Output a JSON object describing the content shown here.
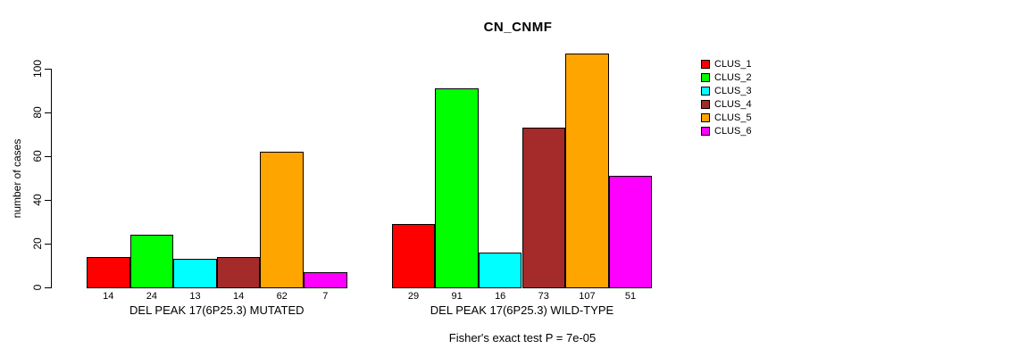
{
  "chart_data": {
    "type": "bar",
    "grouped": true,
    "title": "CN_CNMF",
    "ylabel": "number of cases",
    "xlabel": "",
    "annotation": "Fisher's exact test P = 7e-05",
    "ylim": [
      0,
      100
    ],
    "yticks": [
      0,
      20,
      40,
      60,
      80,
      100
    ],
    "grid": false,
    "legend_position": "right",
    "show_bar_value_labels": true,
    "categories": [
      "DEL PEAK 17(6P25.3) MUTATED",
      "DEL PEAK 17(6P25.3) WILD-TYPE"
    ],
    "series": [
      {
        "name": "CLUS_1",
        "color": "#FF0000",
        "values": [
          14,
          29
        ]
      },
      {
        "name": "CLUS_2",
        "color": "#00FF00",
        "values": [
          24,
          91
        ]
      },
      {
        "name": "CLUS_3",
        "color": "#00FFFF",
        "values": [
          13,
          16
        ]
      },
      {
        "name": "CLUS_4",
        "color": "#A52A2A",
        "values": [
          14,
          73
        ]
      },
      {
        "name": "CLUS_5",
        "color": "#FFA500",
        "values": [
          62,
          107
        ]
      },
      {
        "name": "CLUS_6",
        "color": "#FF00FF",
        "values": [
          7,
          51
        ]
      }
    ]
  },
  "colors": {
    "axis": "#000000",
    "text": "#000000",
    "background": "#FFFFFF"
  }
}
